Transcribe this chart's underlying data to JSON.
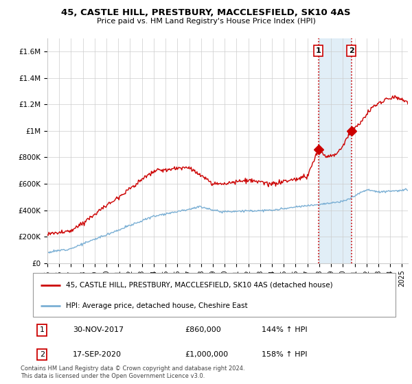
{
  "title": "45, CASTLE HILL, PRESTBURY, MACCLESFIELD, SK10 4AS",
  "subtitle": "Price paid vs. HM Land Registry's House Price Index (HPI)",
  "ylim": [
    0,
    1700000
  ],
  "yticks": [
    0,
    200000,
    400000,
    600000,
    800000,
    1000000,
    1200000,
    1400000,
    1600000
  ],
  "ytick_labels": [
    "£0",
    "£200K",
    "£400K",
    "£600K",
    "£800K",
    "£1M",
    "£1.2M",
    "£1.4M",
    "£1.6M"
  ],
  "xlim_start": 1995.0,
  "xlim_end": 2025.5,
  "xticks": [
    1995,
    1996,
    1997,
    1998,
    1999,
    2000,
    2001,
    2002,
    2003,
    2004,
    2005,
    2006,
    2007,
    2008,
    2009,
    2010,
    2011,
    2012,
    2013,
    2014,
    2015,
    2016,
    2017,
    2018,
    2019,
    2020,
    2021,
    2022,
    2023,
    2024,
    2025
  ],
  "hpi_color": "#7aafd4",
  "price_color": "#cc0000",
  "shade_color": "#daeaf5",
  "marker1_x": 2017.92,
  "marker1_y": 860000,
  "marker2_x": 2020.72,
  "marker2_y": 1000000,
  "legend_label1": "45, CASTLE HILL, PRESTBURY, MACCLESFIELD, SK10 4AS (detached house)",
  "legend_label2": "HPI: Average price, detached house, Cheshire East",
  "table_row1": [
    "1",
    "30-NOV-2017",
    "£860,000",
    "144% ↑ HPI"
  ],
  "table_row2": [
    "2",
    "17-SEP-2020",
    "£1,000,000",
    "158% ↑ HPI"
  ],
  "footer": "Contains HM Land Registry data © Crown copyright and database right 2024.\nThis data is licensed under the Open Government Licence v3.0."
}
